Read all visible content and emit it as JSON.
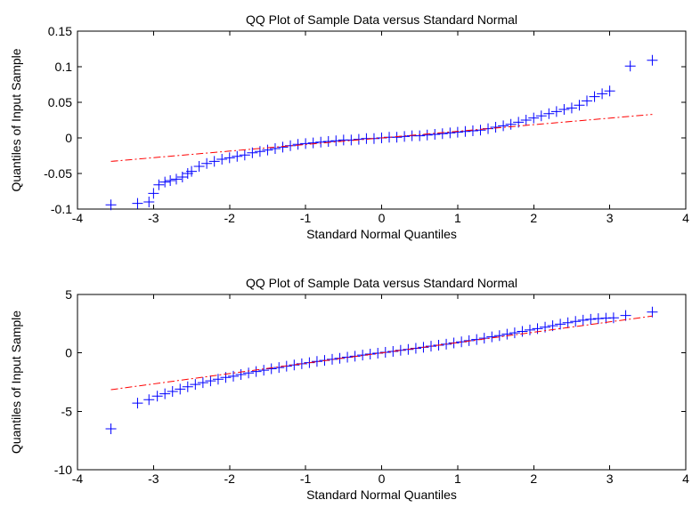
{
  "chart_data": [
    {
      "type": "scatter",
      "title": "QQ Plot of Sample Data versus Standard Normal",
      "xlabel": "Standard Normal Quantiles",
      "ylabel": "Quantiles of Input Sample",
      "xlim": [
        -4,
        4
      ],
      "ylim": [
        -0.1,
        0.15
      ],
      "xticks": [
        -4,
        -3,
        -2,
        -1,
        0,
        1,
        2,
        3,
        4
      ],
      "xtick_labels": [
        "-4",
        "-3",
        "-2",
        "-1",
        "0",
        "1",
        "2",
        "3",
        "4"
      ],
      "yticks": [
        -0.1,
        -0.05,
        0,
        0.05,
        0.1,
        0.15
      ],
      "ytick_labels": [
        "-0.1",
        "-0.05",
        "0",
        "0.05",
        "0.1",
        "0.15"
      ],
      "grid": false,
      "marker": "+",
      "colors": {
        "points": "#0000ff",
        "reference_line": "#ff0000",
        "axes": "#000000"
      },
      "series": [
        {
          "style": "markers",
          "x": [
            -3.56,
            -3.21,
            -3.06,
            -3.0,
            -2.93,
            -2.85,
            -2.78,
            -2.7,
            -2.62,
            -2.55,
            -2.5,
            -2.4,
            -2.3,
            -2.2,
            -2.1,
            -2.0,
            -1.9,
            -1.8,
            -1.7,
            -1.6,
            -1.5,
            -1.4,
            -1.3,
            -1.2,
            -1.1,
            -1.0,
            -0.9,
            -0.8,
            -0.7,
            -0.6,
            -0.5,
            -0.4,
            -0.3,
            -0.2,
            -0.1,
            0.0,
            0.1,
            0.2,
            0.3,
            0.4,
            0.5,
            0.6,
            0.7,
            0.8,
            0.9,
            1.0,
            1.1,
            1.2,
            1.3,
            1.4,
            1.5,
            1.6,
            1.7,
            1.8,
            1.9,
            2.0,
            2.1,
            2.2,
            2.3,
            2.4,
            2.5,
            2.6,
            2.7,
            2.8,
            2.9,
            3.0,
            3.27,
            3.56
          ],
          "y": [
            -0.094,
            -0.092,
            -0.09,
            -0.078,
            -0.066,
            -0.062,
            -0.06,
            -0.058,
            -0.055,
            -0.05,
            -0.047,
            -0.04,
            -0.036,
            -0.033,
            -0.03,
            -0.028,
            -0.026,
            -0.024,
            -0.021,
            -0.019,
            -0.017,
            -0.015,
            -0.013,
            -0.011,
            -0.009,
            -0.008,
            -0.007,
            -0.006,
            -0.005,
            -0.004,
            -0.003,
            -0.003,
            -0.002,
            -0.001,
            -0.001,
            0.0,
            0.001,
            0.001,
            0.002,
            0.003,
            0.003,
            0.004,
            0.005,
            0.006,
            0.007,
            0.008,
            0.009,
            0.01,
            0.011,
            0.013,
            0.015,
            0.017,
            0.019,
            0.022,
            0.025,
            0.028,
            0.031,
            0.034,
            0.037,
            0.04,
            0.042,
            0.046,
            0.052,
            0.058,
            0.062,
            0.066,
            0.101,
            0.109
          ]
        },
        {
          "style": "dashdot",
          "x": [
            -3.56,
            3.56
          ],
          "y": [
            -0.033,
            0.033
          ]
        }
      ]
    },
    {
      "type": "scatter",
      "title": "QQ Plot of Sample Data versus Standard Normal",
      "xlabel": "Standard Normal Quantiles",
      "ylabel": "Quantiles of Input Sample",
      "xlim": [
        -4,
        4
      ],
      "ylim": [
        -10,
        5
      ],
      "xticks": [
        -4,
        -3,
        -2,
        -1,
        0,
        1,
        2,
        3,
        4
      ],
      "xtick_labels": [
        "-4",
        "-3",
        "-2",
        "-1",
        "0",
        "1",
        "2",
        "3",
        "4"
      ],
      "yticks": [
        -10,
        -5,
        0,
        5
      ],
      "ytick_labels": [
        "-10",
        "-5",
        "0",
        "5"
      ],
      "grid": false,
      "marker": "+",
      "colors": {
        "points": "#0000ff",
        "reference_line": "#ff0000",
        "axes": "#000000"
      },
      "series": [
        {
          "style": "markers",
          "x": [
            -3.56,
            -3.21,
            -3.06,
            -2.95,
            -2.85,
            -2.75,
            -2.65,
            -2.55,
            -2.45,
            -2.35,
            -2.25,
            -2.15,
            -2.05,
            -1.95,
            -1.85,
            -1.75,
            -1.65,
            -1.55,
            -1.45,
            -1.35,
            -1.25,
            -1.15,
            -1.05,
            -0.95,
            -0.85,
            -0.75,
            -0.65,
            -0.55,
            -0.45,
            -0.35,
            -0.25,
            -0.15,
            -0.05,
            0.05,
            0.15,
            0.25,
            0.35,
            0.45,
            0.55,
            0.65,
            0.75,
            0.85,
            0.95,
            1.05,
            1.15,
            1.25,
            1.35,
            1.45,
            1.55,
            1.65,
            1.75,
            1.85,
            1.95,
            2.05,
            2.15,
            2.25,
            2.35,
            2.45,
            2.55,
            2.65,
            2.75,
            2.85,
            2.95,
            3.05,
            3.21,
            3.56
          ],
          "y": [
            -6.5,
            -4.3,
            -4.0,
            -3.7,
            -3.5,
            -3.3,
            -3.1,
            -2.9,
            -2.7,
            -2.55,
            -2.4,
            -2.25,
            -2.1,
            -2.0,
            -1.85,
            -1.72,
            -1.6,
            -1.48,
            -1.36,
            -1.25,
            -1.14,
            -1.03,
            -0.93,
            -0.83,
            -0.73,
            -0.64,
            -0.55,
            -0.46,
            -0.37,
            -0.28,
            -0.19,
            -0.1,
            -0.03,
            0.05,
            0.13,
            0.22,
            0.3,
            0.39,
            0.48,
            0.57,
            0.66,
            0.75,
            0.85,
            0.95,
            1.05,
            1.15,
            1.26,
            1.37,
            1.48,
            1.6,
            1.72,
            1.84,
            1.96,
            2.08,
            2.2,
            2.33,
            2.46,
            2.58,
            2.7,
            2.8,
            2.88,
            2.93,
            2.97,
            3.0,
            3.2,
            3.5
          ]
        },
        {
          "style": "dashdot",
          "x": [
            -3.56,
            3.56
          ],
          "y": [
            -3.15,
            3.15
          ]
        }
      ]
    }
  ]
}
